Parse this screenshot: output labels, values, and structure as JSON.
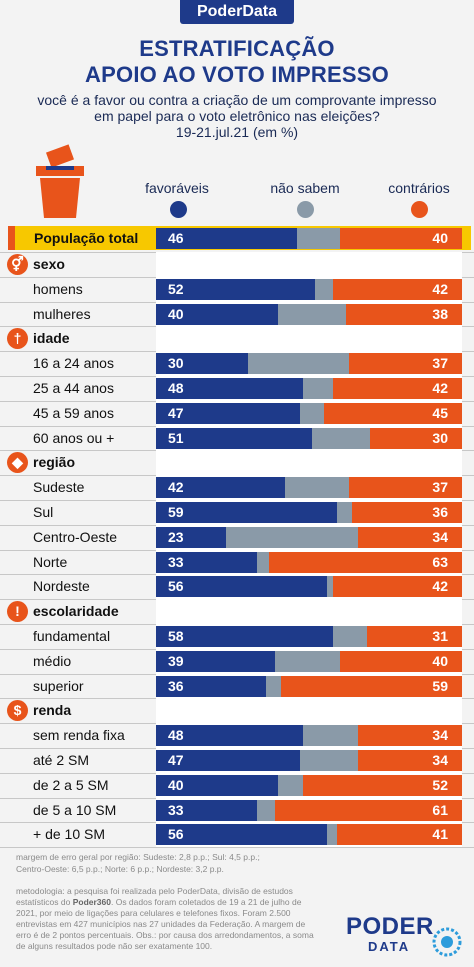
{
  "brand": "PoderData",
  "title_line1": "ESTRATIFICAÇÃO",
  "title_line2": "APOIO AO VOTO IMPRESSO",
  "subtitle_line1": "você é a favor ou contra a criação de um comprovante impresso",
  "subtitle_line2": "em papel para o voto eletrônico nas eleições?",
  "subtitle_line3": "19-21.jul.21 (em %)",
  "colors": {
    "favoraveis": "#1e3a8a",
    "nao_sabem": "#8a9aa8",
    "contrarios": "#e8541b",
    "highlight": "#f7c800"
  },
  "legend": {
    "favoraveis": "favoráveis",
    "nao_sabem": "não sabem",
    "contrarios": "contrários"
  },
  "chart_data": {
    "type": "bar",
    "stacked": true,
    "series": [
      {
        "name": "favoráveis",
        "color": "#1e3a8a"
      },
      {
        "name": "não sabem",
        "color": "#8a9aa8"
      },
      {
        "name": "contrários",
        "color": "#e8541b"
      }
    ],
    "total": {
      "label": "População total",
      "favoraveis": 46,
      "contrarios": 40
    },
    "groups": [
      {
        "name": "sexo",
        "icon": "gender-icon",
        "rows": [
          {
            "label": "homens",
            "favoraveis": 52,
            "contrarios": 42
          },
          {
            "label": "mulheres",
            "favoraveis": 40,
            "contrarios": 38
          }
        ]
      },
      {
        "name": "idade",
        "icon": "person-icon",
        "rows": [
          {
            "label": "16 a 24 anos",
            "favoraveis": 30,
            "contrarios": 37
          },
          {
            "label": "25 a 44 anos",
            "favoraveis": 48,
            "contrarios": 42
          },
          {
            "label": "45 a 59 anos",
            "favoraveis": 47,
            "contrarios": 45
          },
          {
            "label": "60 anos ou +",
            "favoraveis": 51,
            "contrarios": 30
          }
        ]
      },
      {
        "name": "região",
        "icon": "brazil-map-icon",
        "rows": [
          {
            "label": "Sudeste",
            "favoraveis": 42,
            "contrarios": 37
          },
          {
            "label": "Sul",
            "favoraveis": 59,
            "contrarios": 36
          },
          {
            "label": "Centro-Oeste",
            "favoraveis": 23,
            "contrarios": 34
          },
          {
            "label": "Norte",
            "favoraveis": 33,
            "contrarios": 63
          },
          {
            "label": "Nordeste",
            "favoraveis": 56,
            "contrarios": 42
          }
        ]
      },
      {
        "name": "escolaridade",
        "icon": "exclamation-icon",
        "rows": [
          {
            "label": "fundamental",
            "favoraveis": 58,
            "contrarios": 31
          },
          {
            "label": "médio",
            "favoraveis": 39,
            "contrarios": 40
          },
          {
            "label": "superior",
            "favoraveis": 36,
            "contrarios": 59
          }
        ]
      },
      {
        "name": "renda",
        "icon": "dollar-icon",
        "rows": [
          {
            "label": "sem renda fixa",
            "favoraveis": 48,
            "contrarios": 34
          },
          {
            "label": "até 2 SM",
            "favoraveis": 47,
            "contrarios": 34
          },
          {
            "label": "de 2 a 5 SM",
            "favoraveis": 40,
            "contrarios": 52
          },
          {
            "label": "de 5 a 10 SM",
            "favoraveis": 33,
            "contrarios": 61
          },
          {
            "label": "+ de 10 SM",
            "favoraveis": 56,
            "contrarios": 41
          }
        ]
      }
    ]
  },
  "footnote_margin_1": "margem de erro geral por região: Sudeste: 2,8 p.p.; Sul: 4,5 p.p.;",
  "footnote_margin_2": "Centro-Oeste: 6,5 p.p.; Norte: 6 p.p.; Nordeste: 3,2 p.p.",
  "methodology_1": "metodologia: a pesquisa foi realizada pelo PoderData, divisão de estudos",
  "methodology_2a": "estatísticos do ",
  "methodology_2b": "Poder360",
  "methodology_2c": ". Os dados foram coletados de 19 a 21 de julho de",
  "methodology_3": "2021, por meio de ligações para celulares e telefones fixos. Foram 2.500",
  "methodology_4": "entrevistas em 427 municípios nas 27 unidades da Federação. A margem de",
  "methodology_5": "erro é de 2 pontos percentuais. Obs.: por causa dos arredondamentos, a soma",
  "methodology_6": "de alguns resultados pode não ser exatamente 100.",
  "logo_text_top": "PODER",
  "logo_text_bottom": "DATA"
}
